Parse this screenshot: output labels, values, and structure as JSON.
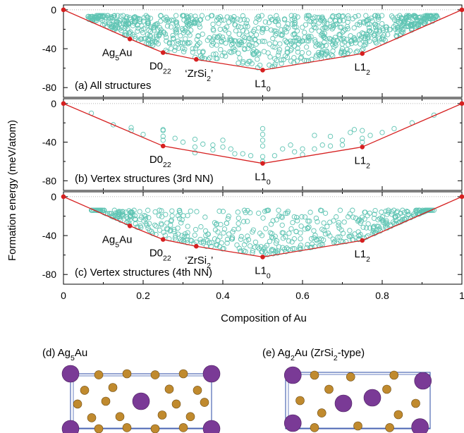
{
  "figure": {
    "ylabel": "Formation energy (meV/atom)",
    "xlabel": "Composition of Au",
    "x_ticks": [
      "0",
      "0.2",
      "0.4",
      "0.6",
      "0.8",
      "1"
    ]
  },
  "colors": {
    "structure": "#5fc4b3",
    "hull": "#d62020",
    "box": "#2a4aa6",
    "atom_ag": "#c08a2e",
    "atom_au": "#7a3a96"
  },
  "chart_data": [
    {
      "type": "scatter",
      "panel_label": "(a) All structures",
      "xlim": [
        0,
        1
      ],
      "ylim": [
        -90,
        5
      ],
      "y_ticks": [
        "0",
        "-40",
        "-80"
      ],
      "hull": [
        [
          0,
          0
        ],
        [
          0.1667,
          -30
        ],
        [
          0.25,
          -44
        ],
        [
          0.3333,
          -51
        ],
        [
          0.5,
          -62
        ],
        [
          0.75,
          -45
        ],
        [
          1,
          0
        ]
      ],
      "labels": [
        {
          "base": "Ag",
          "sub": "5",
          "rest": "Au",
          "x": 0.1667,
          "y": -30
        },
        {
          "base": "D0",
          "sub": "22",
          "rest": "",
          "x": 0.25,
          "y": -44
        },
        {
          "base": "‘ZrSi",
          "sub": "2",
          "rest": "’",
          "x": 0.3333,
          "y": -51
        },
        {
          "base": "L1",
          "sub": "0",
          "rest": "",
          "x": 0.5,
          "y": -62
        },
        {
          "base": "L1",
          "sub": "2",
          "rest": "",
          "x": 0.75,
          "y": -45
        }
      ],
      "cloud": {
        "xmin": 0.06,
        "xmax": 0.94,
        "ytop": -6
      }
    },
    {
      "type": "scatter",
      "panel_label": "(b) Vertex structures (3rd NN)",
      "xlim": [
        0,
        1
      ],
      "ylim": [
        -90,
        5
      ],
      "y_ticks": [
        "0",
        "-40",
        "-80"
      ],
      "hull": [
        [
          0,
          0
        ],
        [
          0.25,
          -44
        ],
        [
          0.5,
          -62
        ],
        [
          0.75,
          -45
        ],
        [
          1,
          0
        ]
      ],
      "labels": [
        {
          "base": "D0",
          "sub": "22",
          "rest": "",
          "x": 0.25,
          "y": -44
        },
        {
          "base": "L1",
          "sub": "0",
          "rest": "",
          "x": 0.5,
          "y": -62
        },
        {
          "base": "L1",
          "sub": "2",
          "rest": "",
          "x": 0.75,
          "y": -45
        }
      ],
      "points": [
        [
          0.07,
          -10
        ],
        [
          0.125,
          -22
        ],
        [
          0.17,
          -25
        ],
        [
          0.17,
          -28
        ],
        [
          0.2,
          -32
        ],
        [
          0.25,
          -28
        ],
        [
          0.25,
          -34
        ],
        [
          0.25,
          -38
        ],
        [
          0.25,
          -27
        ],
        [
          0.28,
          -36
        ],
        [
          0.3,
          -40
        ],
        [
          0.33,
          -37
        ],
        [
          0.33,
          -45
        ],
        [
          0.33,
          -51
        ],
        [
          0.35,
          -42
        ],
        [
          0.375,
          -43
        ],
        [
          0.375,
          -48
        ],
        [
          0.4,
          -38
        ],
        [
          0.4,
          -45
        ],
        [
          0.42,
          -47
        ],
        [
          0.43,
          -52
        ],
        [
          0.45,
          -52
        ],
        [
          0.47,
          -54
        ],
        [
          0.5,
          -26
        ],
        [
          0.5,
          -32
        ],
        [
          0.5,
          -38
        ],
        [
          0.5,
          -44
        ],
        [
          0.5,
          -55
        ],
        [
          0.5,
          -60
        ],
        [
          0.53,
          -54
        ],
        [
          0.55,
          -47
        ],
        [
          0.57,
          -43
        ],
        [
          0.58,
          -50
        ],
        [
          0.6,
          -47
        ],
        [
          0.6,
          -53
        ],
        [
          0.63,
          -33
        ],
        [
          0.63,
          -47
        ],
        [
          0.65,
          -43
        ],
        [
          0.67,
          -34
        ],
        [
          0.67,
          -44
        ],
        [
          0.7,
          -38
        ],
        [
          0.7,
          -43
        ],
        [
          0.72,
          -30
        ],
        [
          0.73,
          -27
        ],
        [
          0.75,
          -28
        ],
        [
          0.75,
          -36
        ],
        [
          0.75,
          -40
        ],
        [
          0.77,
          -33
        ],
        [
          0.8,
          -30
        ],
        [
          0.83,
          -26
        ],
        [
          0.875,
          -20
        ],
        [
          0.93,
          -12
        ]
      ]
    },
    {
      "type": "scatter",
      "panel_label": "(c) Vertex structures (4th NN)",
      "xlim": [
        0,
        1
      ],
      "ylim": [
        -90,
        5
      ],
      "y_ticks": [
        "0",
        "-40",
        "-80"
      ],
      "hull": [
        [
          0,
          0
        ],
        [
          0.1667,
          -30
        ],
        [
          0.25,
          -44
        ],
        [
          0.3333,
          -51
        ],
        [
          0.5,
          -62
        ],
        [
          0.75,
          -45
        ],
        [
          1,
          0
        ]
      ],
      "labels": [
        {
          "base": "Ag",
          "sub": "5",
          "rest": "Au",
          "x": 0.1667,
          "y": -30
        },
        {
          "base": "D0",
          "sub": "22",
          "rest": "",
          "x": 0.25,
          "y": -44
        },
        {
          "base": "‘ZrSi",
          "sub": "2",
          "rest": "’",
          "x": 0.3333,
          "y": -51
        },
        {
          "base": "L1",
          "sub": "0",
          "rest": "",
          "x": 0.5,
          "y": -62
        },
        {
          "base": "L1",
          "sub": "2",
          "rest": "",
          "x": 0.75,
          "y": -45
        }
      ],
      "cloud": {
        "xmin": 0.07,
        "xmax": 0.93,
        "ytop": -14
      }
    }
  ],
  "structures": [
    {
      "title_base": "(d) Ag",
      "title_sub": "5",
      "title_rest": "Au"
    },
    {
      "title_base": "(e) Ag",
      "title_sub": "2",
      "title_rest": "Au (ZrSi",
      "title_sub2": "2",
      "title_rest2": "-type)"
    }
  ]
}
